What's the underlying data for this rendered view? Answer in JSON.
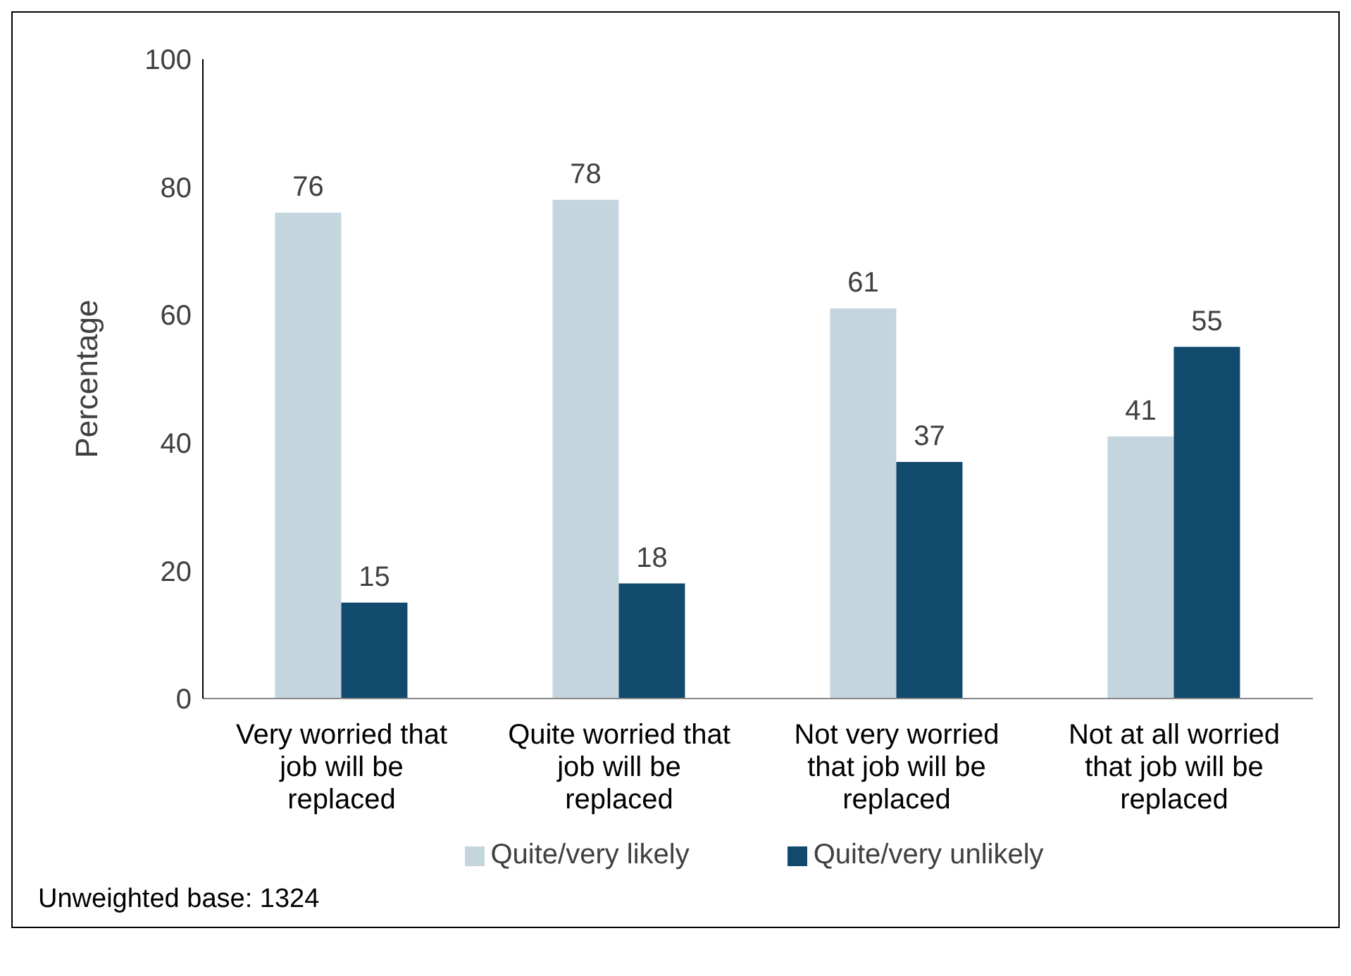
{
  "chart_data": {
    "type": "bar",
    "categories": [
      "Very worried that job will be replaced",
      "Quite worried that job will be replaced",
      "Not very worried that job will be replaced",
      "Not at all worried that job will be replaced"
    ],
    "series": [
      {
        "name": "Quite/very likely",
        "color": "#c5d5de",
        "values": [
          76,
          78,
          61,
          41
        ]
      },
      {
        "name": "Quite/very unlikely",
        "color": "#124a6e",
        "values": [
          15,
          18,
          37,
          55
        ]
      }
    ],
    "ylabel": "Percentage",
    "ylim": [
      0,
      100
    ],
    "yticks": [
      0,
      20,
      40,
      60,
      80,
      100
    ],
    "data_labels": true,
    "grid": false,
    "legend": "bottom",
    "annotations": [
      "Unweighted base: 1324"
    ]
  }
}
